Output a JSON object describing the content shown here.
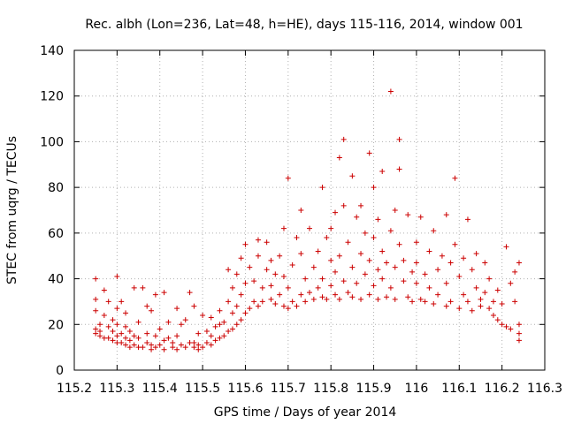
{
  "chart_data": {
    "type": "scatter",
    "title": "Rec. albh (Lon=236, Lat=48, h=HE), days 115-116, 2014, window 001",
    "xlabel": "GPS time / Days of year 2014",
    "ylabel": "STEC from uqrg / TECUs",
    "xlim": [
      115.2,
      116.3
    ],
    "ylim": [
      0,
      140
    ],
    "xticks": [
      115.2,
      115.3,
      115.4,
      115.5,
      115.6,
      115.7,
      115.8,
      115.9,
      116.0,
      116.1,
      116.2,
      116.3
    ],
    "xtick_labels": [
      "115.2",
      "115.3",
      "115.4",
      "115.5",
      "115.6",
      "115.7",
      "115.8",
      "115.9",
      "116",
      "116.1",
      "116.2",
      "116.3"
    ],
    "yticks": [
      0,
      20,
      40,
      60,
      80,
      100,
      120,
      140
    ],
    "ytick_labels": [
      "0",
      "20",
      "40",
      "60",
      "80",
      "100",
      "120",
      "140"
    ],
    "grid": true,
    "marker": "+",
    "color": "#cc0000",
    "series": [
      {
        "points": [
          [
            115.25,
            18
          ],
          [
            115.25,
            16
          ],
          [
            115.25,
            26
          ],
          [
            115.25,
            31
          ],
          [
            115.25,
            40
          ],
          [
            115.26,
            15
          ],
          [
            115.26,
            17
          ],
          [
            115.26,
            20
          ],
          [
            115.27,
            14
          ],
          [
            115.27,
            24
          ],
          [
            115.27,
            35
          ],
          [
            115.28,
            14
          ],
          [
            115.28,
            19
          ],
          [
            115.28,
            30
          ],
          [
            115.29,
            13
          ],
          [
            115.29,
            17
          ],
          [
            115.29,
            22
          ],
          [
            115.3,
            41
          ],
          [
            115.3,
            12
          ],
          [
            115.3,
            15
          ],
          [
            115.3,
            20
          ],
          [
            115.3,
            27
          ],
          [
            115.31,
            12
          ],
          [
            115.31,
            16
          ],
          [
            115.31,
            30
          ],
          [
            115.32,
            11
          ],
          [
            115.32,
            14
          ],
          [
            115.32,
            19
          ],
          [
            115.32,
            25
          ],
          [
            115.33,
            10
          ],
          [
            115.33,
            13
          ],
          [
            115.33,
            17
          ],
          [
            115.34,
            36
          ],
          [
            115.34,
            11
          ],
          [
            115.34,
            15
          ],
          [
            115.35,
            10
          ],
          [
            115.35,
            14
          ],
          [
            115.35,
            21
          ],
          [
            115.36,
            36
          ],
          [
            115.36,
            10
          ],
          [
            115.37,
            12
          ],
          [
            115.37,
            16
          ],
          [
            115.37,
            28
          ],
          [
            115.38,
            26
          ],
          [
            115.38,
            11
          ],
          [
            115.38,
            9
          ],
          [
            115.39,
            10
          ],
          [
            115.39,
            15
          ],
          [
            115.39,
            33
          ],
          [
            115.4,
            18
          ],
          [
            115.4,
            11
          ],
          [
            115.41,
            13
          ],
          [
            115.41,
            9
          ],
          [
            115.41,
            34
          ],
          [
            115.42,
            14
          ],
          [
            115.42,
            21
          ],
          [
            115.43,
            10
          ],
          [
            115.43,
            12
          ],
          [
            115.44,
            27
          ],
          [
            115.44,
            15
          ],
          [
            115.44,
            9
          ],
          [
            115.45,
            11
          ],
          [
            115.45,
            20
          ],
          [
            115.46,
            22
          ],
          [
            115.46,
            10
          ],
          [
            115.47,
            12
          ],
          [
            115.47,
            34
          ],
          [
            115.48,
            10
          ],
          [
            115.48,
            28
          ],
          [
            115.48,
            12
          ],
          [
            115.49,
            11
          ],
          [
            115.49,
            9
          ],
          [
            115.49,
            16
          ],
          [
            115.5,
            24
          ],
          [
            115.5,
            10
          ],
          [
            115.51,
            12
          ],
          [
            115.51,
            17
          ],
          [
            115.52,
            15
          ],
          [
            115.52,
            23
          ],
          [
            115.52,
            11
          ],
          [
            115.53,
            13
          ],
          [
            115.53,
            19
          ],
          [
            115.54,
            14
          ],
          [
            115.54,
            20
          ],
          [
            115.54,
            26
          ],
          [
            115.55,
            15
          ],
          [
            115.55,
            21
          ],
          [
            115.56,
            17
          ],
          [
            115.56,
            30
          ],
          [
            115.56,
            44
          ],
          [
            115.57,
            18
          ],
          [
            115.57,
            25
          ],
          [
            115.57,
            36
          ],
          [
            115.58,
            20
          ],
          [
            115.58,
            28
          ],
          [
            115.58,
            42
          ],
          [
            115.59,
            22
          ],
          [
            115.59,
            33
          ],
          [
            115.59,
            49
          ],
          [
            115.6,
            55
          ],
          [
            115.6,
            25
          ],
          [
            115.6,
            38
          ],
          [
            115.61,
            27
          ],
          [
            115.61,
            45
          ],
          [
            115.62,
            30
          ],
          [
            115.62,
            39
          ],
          [
            115.63,
            57
          ],
          [
            115.63,
            28
          ],
          [
            115.63,
            50
          ],
          [
            115.64,
            36
          ],
          [
            115.64,
            30
          ],
          [
            115.65,
            44
          ],
          [
            115.65,
            56
          ],
          [
            115.66,
            31
          ],
          [
            115.66,
            37
          ],
          [
            115.66,
            48
          ],
          [
            115.67,
            29
          ],
          [
            115.67,
            42
          ],
          [
            115.68,
            50
          ],
          [
            115.68,
            33
          ],
          [
            115.69,
            28
          ],
          [
            115.69,
            41
          ],
          [
            115.69,
            62
          ],
          [
            115.7,
            84
          ],
          [
            115.7,
            27
          ],
          [
            115.7,
            36
          ],
          [
            115.71,
            30
          ],
          [
            115.71,
            46
          ],
          [
            115.72,
            58
          ],
          [
            115.72,
            28
          ],
          [
            115.73,
            33
          ],
          [
            115.73,
            70
          ],
          [
            115.73,
            51
          ],
          [
            115.74,
            30
          ],
          [
            115.74,
            40
          ],
          [
            115.75,
            34
          ],
          [
            115.75,
            62
          ],
          [
            115.76,
            31
          ],
          [
            115.76,
            45
          ],
          [
            115.77,
            36
          ],
          [
            115.77,
            52
          ],
          [
            115.78,
            32
          ],
          [
            115.78,
            80
          ],
          [
            115.78,
            40
          ],
          [
            115.79,
            58
          ],
          [
            115.79,
            31
          ],
          [
            115.8,
            48
          ],
          [
            115.8,
            37
          ],
          [
            115.8,
            62
          ],
          [
            115.81,
            69
          ],
          [
            115.81,
            33
          ],
          [
            115.81,
            43
          ],
          [
            115.82,
            93
          ],
          [
            115.82,
            31
          ],
          [
            115.82,
            50
          ],
          [
            115.83,
            101
          ],
          [
            115.83,
            72
          ],
          [
            115.83,
            39
          ],
          [
            115.84,
            34
          ],
          [
            115.84,
            56
          ],
          [
            115.85,
            85
          ],
          [
            115.85,
            45
          ],
          [
            115.85,
            32
          ],
          [
            115.86,
            67
          ],
          [
            115.86,
            38
          ],
          [
            115.87,
            31
          ],
          [
            115.87,
            51
          ],
          [
            115.87,
            72
          ],
          [
            115.88,
            42
          ],
          [
            115.88,
            60
          ],
          [
            115.89,
            95
          ],
          [
            115.89,
            33
          ],
          [
            115.89,
            48
          ],
          [
            115.9,
            80
          ],
          [
            115.9,
            37
          ],
          [
            115.9,
            58
          ],
          [
            115.91,
            31
          ],
          [
            115.91,
            44
          ],
          [
            115.91,
            66
          ],
          [
            115.92,
            87
          ],
          [
            115.92,
            40
          ],
          [
            115.92,
            52
          ],
          [
            115.93,
            32
          ],
          [
            115.93,
            47
          ],
          [
            115.94,
            122
          ],
          [
            115.94,
            61
          ],
          [
            115.94,
            36
          ],
          [
            115.95,
            70
          ],
          [
            115.95,
            45
          ],
          [
            115.95,
            31
          ],
          [
            115.96,
            88
          ],
          [
            115.96,
            101
          ],
          [
            115.96,
            55
          ],
          [
            115.97,
            39
          ],
          [
            115.97,
            48
          ],
          [
            115.98,
            32
          ],
          [
            115.98,
            68
          ],
          [
            115.99,
            43
          ],
          [
            115.99,
            30
          ],
          [
            116.0,
            56
          ],
          [
            116.0,
            38
          ],
          [
            116.0,
            47
          ],
          [
            116.01,
            31
          ],
          [
            116.01,
            67
          ],
          [
            116.02,
            42
          ],
          [
            116.02,
            30
          ],
          [
            116.03,
            52
          ],
          [
            116.03,
            36
          ],
          [
            116.04,
            29
          ],
          [
            116.04,
            61
          ],
          [
            116.05,
            44
          ],
          [
            116.05,
            33
          ],
          [
            116.06,
            50
          ],
          [
            116.07,
            28
          ],
          [
            116.07,
            68
          ],
          [
            116.07,
            38
          ],
          [
            116.08,
            47
          ],
          [
            116.08,
            30
          ],
          [
            116.09,
            84
          ],
          [
            116.09,
            55
          ],
          [
            116.1,
            27
          ],
          [
            116.1,
            41
          ],
          [
            116.11,
            49
          ],
          [
            116.11,
            33
          ],
          [
            116.12,
            66
          ],
          [
            116.12,
            30
          ],
          [
            116.13,
            44
          ],
          [
            116.13,
            26
          ],
          [
            116.14,
            51
          ],
          [
            116.14,
            36
          ],
          [
            116.15,
            31
          ],
          [
            116.15,
            28
          ],
          [
            116.16,
            47
          ],
          [
            116.16,
            34
          ],
          [
            116.17,
            27
          ],
          [
            116.17,
            40
          ],
          [
            116.18,
            30
          ],
          [
            116.18,
            24
          ],
          [
            116.19,
            35
          ],
          [
            116.19,
            22
          ],
          [
            116.2,
            29
          ],
          [
            116.2,
            20
          ],
          [
            116.21,
            54
          ],
          [
            116.21,
            19
          ],
          [
            116.22,
            38
          ],
          [
            116.22,
            18
          ],
          [
            116.23,
            43
          ],
          [
            116.23,
            30
          ],
          [
            116.24,
            47
          ],
          [
            116.24,
            16
          ],
          [
            116.24,
            13
          ],
          [
            116.24,
            20
          ]
        ]
      }
    ]
  }
}
